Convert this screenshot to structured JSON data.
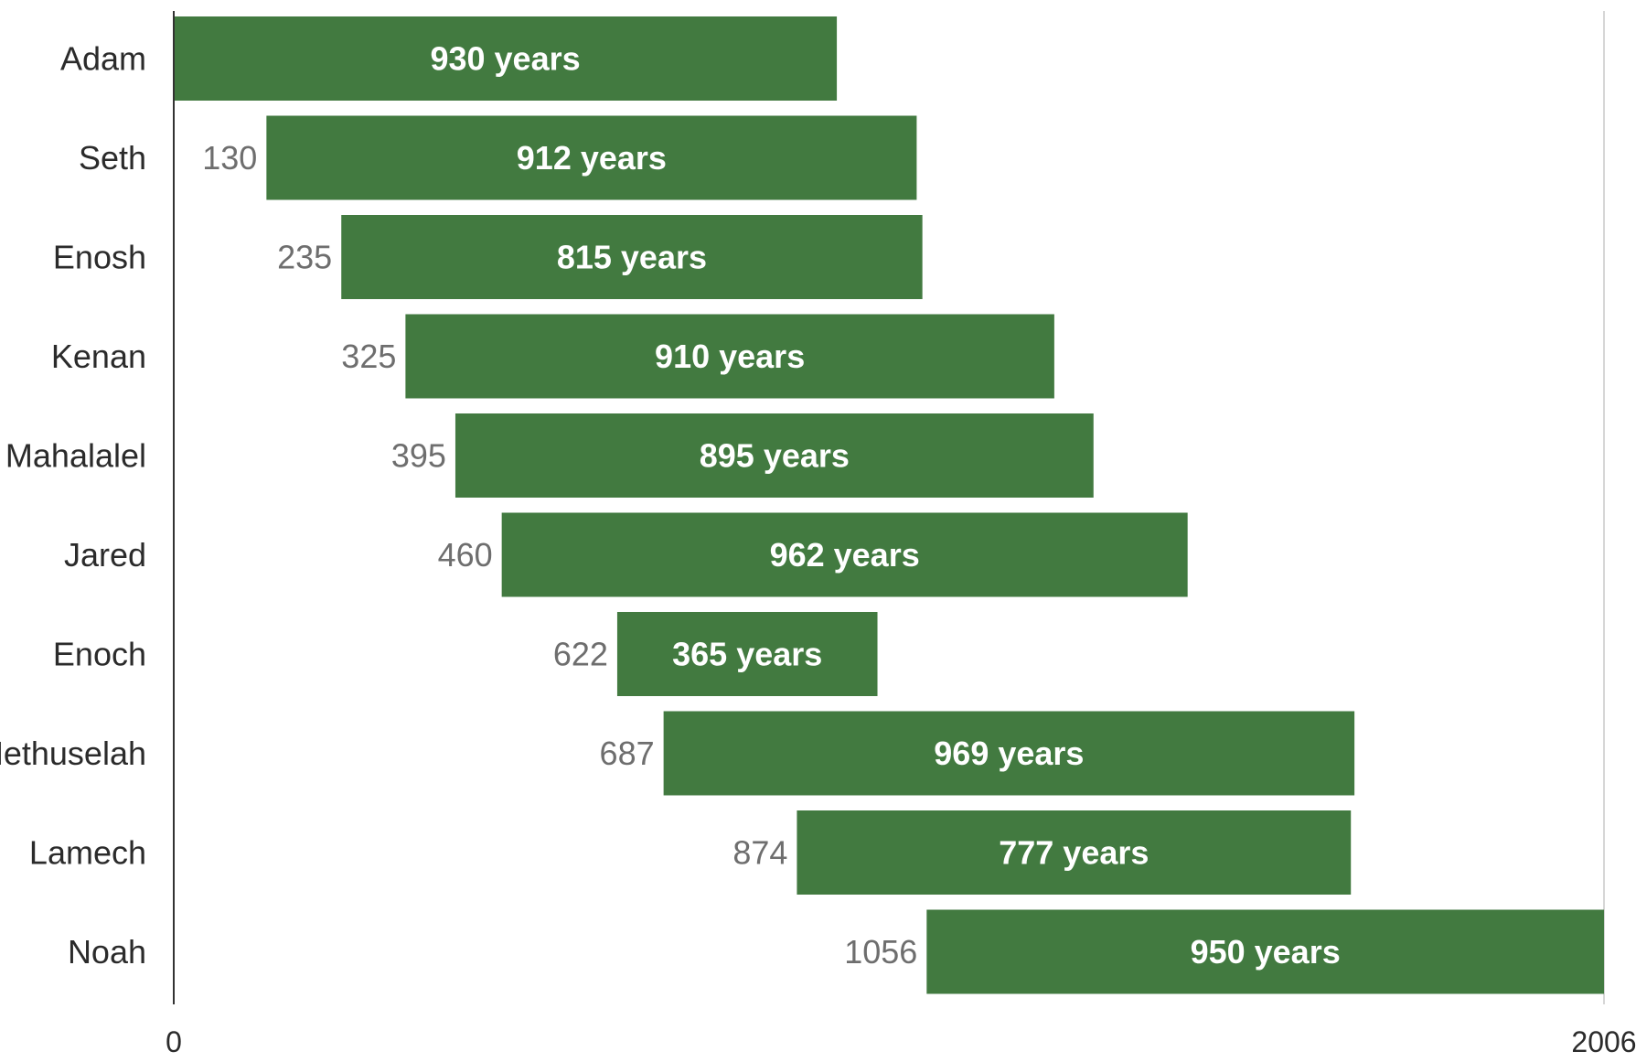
{
  "chart_data": {
    "type": "bar",
    "orientation": "horizontal",
    "subtype": "floating-range",
    "bar_color": "#427a40",
    "title": "",
    "xlabel": "",
    "ylabel": "",
    "xlim": [
      0,
      2006
    ],
    "x_ticks": [
      "0",
      "2006"
    ],
    "grid": false,
    "duration_suffix": "years",
    "categories": [
      "Adam",
      "Seth",
      "Enosh",
      "Kenan",
      "Mahalalel",
      "Jared",
      "Enoch",
      "Methuselah",
      "Lamech",
      "Noah"
    ],
    "start": [
      0,
      130,
      235,
      325,
      395,
      460,
      622,
      687,
      874,
      1056
    ],
    "duration": [
      930,
      912,
      815,
      910,
      895,
      962,
      365,
      969,
      777,
      950
    ],
    "start_labels": [
      "",
      "130",
      "235",
      "325",
      "395",
      "460",
      "622",
      "687",
      "874",
      "1056"
    ],
    "duration_labels": [
      "930 years",
      "912 years",
      "815 years",
      "910 years",
      "895 years",
      "962 years",
      "365 years",
      "969 years",
      "777 years",
      "950 years"
    ]
  }
}
